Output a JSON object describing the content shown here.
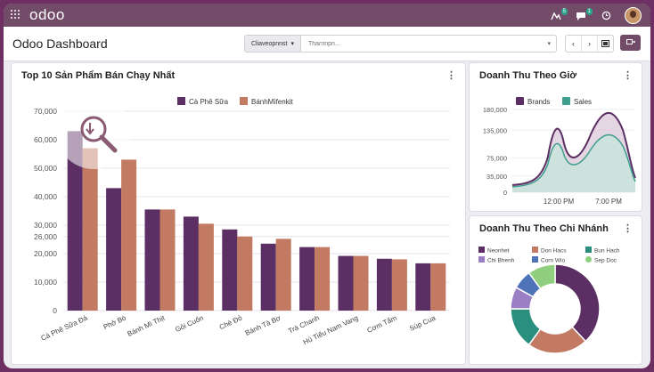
{
  "navbar": {
    "logo": "odoo",
    "notif_badge_1": "5",
    "notif_badge_2": "1"
  },
  "control_panel": {
    "title": "Odoo Dashboard",
    "facet_label": "Cliaveopnnst",
    "search_placeholder": "Tharrinpn..."
  },
  "charts": [
    {
      "type": "bar",
      "title": "Top 10 Sản Phẩm Bán Chạy Nhất",
      "categories": [
        "Cà Phê Sữa Đá",
        "Phở Bò",
        "Bánh Mì Thịt",
        "Gỏi Cuốn",
        "Chè Đỏ",
        "Bánh Tà Bơ",
        "Trà Chanh",
        "Hủ Tiếu Nam Vang",
        "Cơm Tấm",
        "Súp Cua"
      ],
      "series": [
        {
          "name": "Cà Phê Sữa",
          "color": "#5b2f63",
          "values": [
            63000,
            43000,
            35500,
            33000,
            28500,
            23500,
            22300,
            19200,
            18200,
            16600
          ]
        },
        {
          "name": "BánhMìfenkit",
          "color": "#c27a62",
          "values": [
            57000,
            53000,
            35500,
            30500,
            26000,
            25200,
            22300,
            19200,
            18000,
            16600
          ]
        }
      ],
      "ylim": [
        0,
        70000
      ],
      "yticks": [
        "0",
        "10,000",
        "20,000",
        "26,000",
        "30,000",
        "40,000",
        "50,000",
        "60,000",
        "70,000"
      ],
      "ytick_values": [
        0,
        10000,
        20000,
        26000,
        30000,
        40000,
        50000,
        60000,
        70000
      ],
      "legend": "top-center"
    },
    {
      "type": "area",
      "title": "Doanh Thu Theo Giờ",
      "series": [
        {
          "name": "Brands",
          "color": "#5b2f63"
        },
        {
          "name": "Sales",
          "color": "#3f9e8e"
        }
      ],
      "yticks": [
        "0",
        "35,000",
        "75,000",
        "135,000",
        "180,000"
      ],
      "ytick_values": [
        0,
        35000,
        75000,
        135000,
        180000
      ],
      "xticks": [
        "12:00 PM",
        "7:00 PM"
      ],
      "ylim": [
        0,
        180000
      ]
    },
    {
      "type": "pie",
      "title": "Doanh Thu Theo Chi Nhánh",
      "legend_entries": [
        {
          "label": "Neonhet",
          "color": "#5b2f63",
          "value": 38
        },
        {
          "label": "Don Hacs",
          "color": "#c27a62",
          "value": 22
        },
        {
          "label": "Bun Hach",
          "color": "#2a8f7f",
          "value": 15
        },
        {
          "label": "Chi Bhenh",
          "color": "#9a7fc4",
          "value": 8
        },
        {
          "label": "Corn Wio",
          "color": "#4f73b8",
          "value": 7
        },
        {
          "label": "Sep Doc",
          "color": "#8fcf7f",
          "value": 10
        }
      ]
    }
  ],
  "colors": {
    "brand": "#714B67",
    "bar_primary": "#5b2f63",
    "bar_secondary": "#c27a62"
  }
}
